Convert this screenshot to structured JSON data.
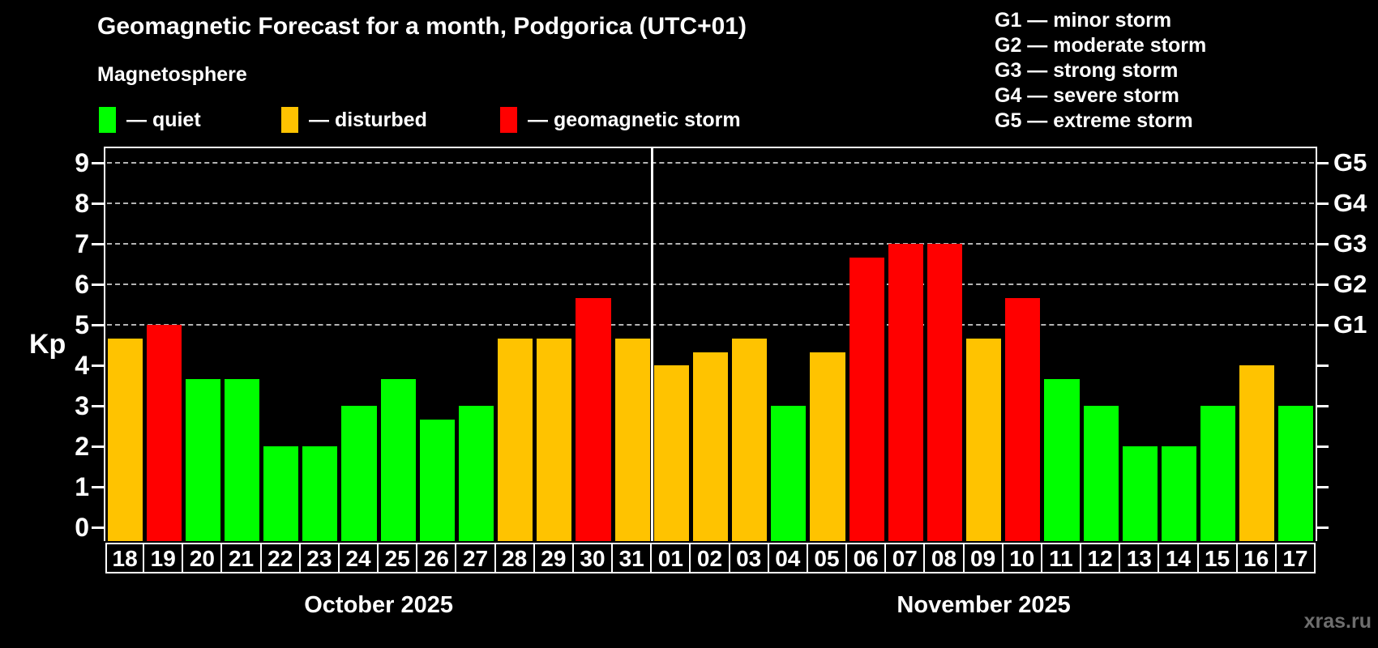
{
  "title": "Geomagnetic Forecast for a month, Podgorica (UTC+01)",
  "subtitle": "Magnetosphere",
  "status_legend": [
    {
      "key": "quiet",
      "label": "— quiet",
      "color": "#00ff00"
    },
    {
      "key": "disturbed",
      "label": "— disturbed",
      "color": "#ffc300"
    },
    {
      "key": "storm",
      "label": "— geomagnetic storm",
      "color": "#ff0000"
    }
  ],
  "g_legend": [
    "G1 — minor storm",
    "G2 — moderate storm",
    "G3 — strong storm",
    "G4 — severe storm",
    "G5 — extreme storm"
  ],
  "y_axis": {
    "label": "Kp",
    "ticks": [
      0,
      1,
      2,
      3,
      4,
      5,
      6,
      7,
      8,
      9
    ]
  },
  "right_axis": {
    "labels": [
      {
        "text": "G1",
        "kp": 5
      },
      {
        "text": "G2",
        "kp": 6
      },
      {
        "text": "G3",
        "kp": 7
      },
      {
        "text": "G4",
        "kp": 8
      },
      {
        "text": "G5",
        "kp": 9
      }
    ]
  },
  "watermark": "xras.ru",
  "colors": {
    "background": "#000000",
    "quiet": "#00ff00",
    "disturbed": "#ffc300",
    "storm": "#ff0000",
    "gridline": "#b4b4b4",
    "axis": "#ffffff",
    "watermark": "#6e6e6e"
  },
  "chart_data": {
    "type": "bar",
    "title": "Geomagnetic Forecast for a month, Podgorica (UTC+01)",
    "subtitle": "Magnetosphere",
    "ylabel": "Kp",
    "ylim": [
      0,
      9
    ],
    "grid": "dashed horizontal at Kp 5-9 only",
    "gridlines_at_kp": [
      5,
      6,
      7,
      8,
      9
    ],
    "g_levels": {
      "G1": 5,
      "G2": 6,
      "G3": 7,
      "G4": 8,
      "G5": 9
    },
    "legend_position": "top",
    "months": [
      {
        "label": "October 2025",
        "days": [
          "18",
          "19",
          "20",
          "21",
          "22",
          "23",
          "24",
          "25",
          "26",
          "27",
          "28",
          "29",
          "30",
          "31"
        ],
        "kp": [
          4.67,
          5.0,
          3.67,
          3.67,
          2.0,
          2.0,
          3.0,
          3.67,
          2.67,
          3.0,
          4.67,
          4.67,
          5.67,
          4.67
        ],
        "status": [
          "disturbed",
          "storm",
          "quiet",
          "quiet",
          "quiet",
          "quiet",
          "quiet",
          "quiet",
          "quiet",
          "quiet",
          "disturbed",
          "disturbed",
          "storm",
          "disturbed"
        ]
      },
      {
        "label": "November 2025",
        "days": [
          "01",
          "02",
          "03",
          "04",
          "05",
          "06",
          "07",
          "08",
          "09",
          "10",
          "11",
          "12",
          "13",
          "14",
          "15",
          "16",
          "17"
        ],
        "kp": [
          4.0,
          4.33,
          4.67,
          3.0,
          4.33,
          6.67,
          7.0,
          7.0,
          4.67,
          5.67,
          3.67,
          3.0,
          2.0,
          2.0,
          3.0,
          4.0,
          3.0
        ],
        "status": [
          "disturbed",
          "disturbed",
          "disturbed",
          "quiet",
          "disturbed",
          "storm",
          "storm",
          "storm",
          "disturbed",
          "storm",
          "quiet",
          "quiet",
          "quiet",
          "quiet",
          "quiet",
          "disturbed",
          "quiet"
        ]
      }
    ]
  }
}
